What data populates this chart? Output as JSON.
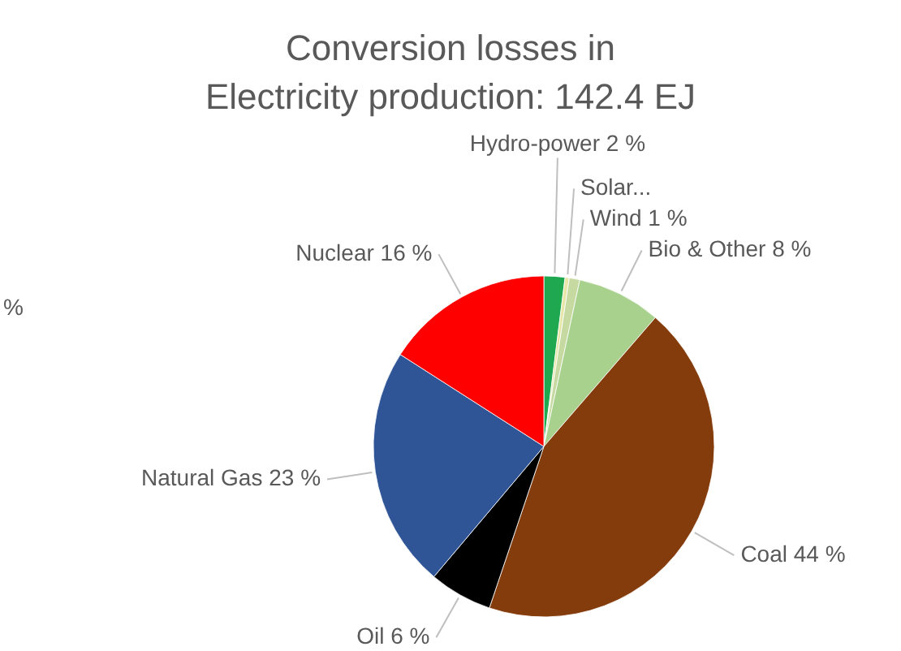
{
  "chart_data": {
    "type": "pie",
    "title": "Conversion losses in\nElectricity production: 142.4 EJ",
    "categories": [
      "Hydro-power 2 %",
      "Solar...",
      "Wind 1 %",
      "Bio & Other  8 %",
      "Coal 44 %",
      "Oil 6 %",
      "Natural Gas 23 %",
      "Nuclear 16 %"
    ],
    "values": [
      2,
      0.4,
      1,
      8,
      44,
      6,
      23,
      16
    ],
    "colors": [
      "#1fa84f",
      "#e6e6a8",
      "#c5d9a0",
      "#a9d18e",
      "#843c0c",
      "#000000",
      "#2f5597",
      "#ff0000"
    ],
    "annotations": [
      "%"
    ]
  }
}
